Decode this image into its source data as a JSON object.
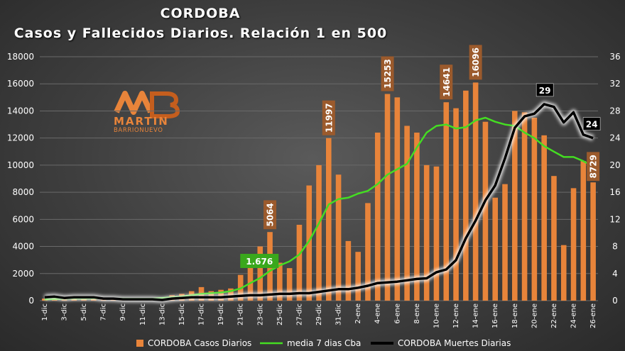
{
  "header": {
    "title": "CORDOBA",
    "subtitle": "Casos y Fallecidos Diarios. Relación 1 en 500"
  },
  "logo": {
    "name": "MARTIN",
    "sub": "BARRIONUEVO"
  },
  "colors": {
    "bars": "#e8843a",
    "bar_label_bg": "#9b5a2c",
    "media": "#44dd22",
    "deaths": "#000000",
    "deaths_glow": "#ffffff"
  },
  "chart_data": {
    "type": "bar",
    "title": "CORDOBA — Casos y Fallecidos Diarios. Relación 1 en 500",
    "categories": [
      "1-dic",
      "2-dic",
      "3-dic",
      "4-dic",
      "5-dic",
      "6-dic",
      "7-dic",
      "8-dic",
      "9-dic",
      "10-dic",
      "11-dic",
      "12-dic",
      "13-dic",
      "14-dic",
      "15-dic",
      "16-dic",
      "17-dic",
      "18-dic",
      "19-dic",
      "20-dic",
      "21-dic",
      "22-dic",
      "23-dic",
      "24-dic",
      "25-dic",
      "26-dic",
      "27-dic",
      "28-dic",
      "29-dic",
      "30-dic",
      "31-dic",
      "1-ene",
      "2-ene",
      "3-ene",
      "4-ene",
      "5-ene",
      "6-ene",
      "7-ene",
      "8-ene",
      "9-ene",
      "10-ene",
      "11-ene",
      "12-ene",
      "13-ene",
      "14-ene",
      "15-ene",
      "16-ene",
      "17-ene",
      "18-ene",
      "19-ene",
      "20-ene",
      "21-ene",
      "22-ene",
      "23-ene",
      "24-ene",
      "25-ene",
      "26-ene"
    ],
    "tick_labels": [
      "1-dic",
      "3-dic",
      "5-dic",
      "7-dic",
      "9-dic",
      "11-dic",
      "13-dic",
      "15-dic",
      "17-dic",
      "19-dic",
      "21-dic",
      "23-dic",
      "25-dic",
      "27-dic",
      "29-dic",
      "31-dic",
      "2-ene",
      "4-ene",
      "6-ene",
      "8-ene",
      "10-ene",
      "12-ene",
      "14-ene",
      "16-ene",
      "18-ene",
      "20-ene",
      "22-ene",
      "24-ene",
      "26-ene"
    ],
    "y_left": {
      "min": 0,
      "max": 18000,
      "ticks": [
        0,
        2000,
        4000,
        6000,
        8000,
        10000,
        12000,
        14000,
        16000,
        18000
      ]
    },
    "y_right": {
      "min": 0,
      "max": 36,
      "ticks": [
        0,
        4,
        8,
        12,
        16,
        20,
        24,
        28,
        32,
        36
      ]
    },
    "grid": true,
    "legend_position": "bottom",
    "series": [
      {
        "name": "CORDOBA Casos Diarios",
        "type": "bar",
        "axis": "left",
        "values": [
          150,
          200,
          150,
          250,
          150,
          200,
          100,
          150,
          100,
          150,
          100,
          100,
          200,
          400,
          500,
          700,
          1000,
          700,
          800,
          900,
          1900,
          2900,
          4000,
          5064,
          2800,
          2400,
          5600,
          8500,
          10000,
          11997,
          9300,
          4400,
          3600,
          7200,
          12400,
          15253,
          15000,
          12900,
          12400,
          10000,
          9900,
          14641,
          14200,
          15500,
          16096,
          13200,
          7600,
          8600,
          14000,
          13900,
          13500,
          12200,
          9200,
          4100,
          8300,
          10300,
          8729
        ],
        "labels": [
          {
            "index": 23,
            "text": "5064"
          },
          {
            "index": 29,
            "text": "11997"
          },
          {
            "index": 35,
            "text": "15253"
          },
          {
            "index": 41,
            "text": "14641"
          },
          {
            "index": 44,
            "text": "16096"
          },
          {
            "index": 56,
            "text": "8729"
          }
        ]
      },
      {
        "name": "media 7 dias Cba",
        "type": "line",
        "axis": "left",
        "values": [
          100,
          120,
          140,
          150,
          150,
          160,
          160,
          150,
          150,
          140,
          140,
          150,
          200,
          250,
          300,
          400,
          500,
          550,
          600,
          700,
          900,
          1300,
          1676,
          2200,
          2600,
          2900,
          3400,
          4400,
          5700,
          7100,
          7500,
          7600,
          7900,
          8100,
          8600,
          9300,
          9700,
          10100,
          11300,
          12400,
          12900,
          13000,
          12700,
          12800,
          13300,
          13500,
          13200,
          13000,
          12900,
          12400,
          12000,
          11400,
          11000,
          10600,
          10600,
          10300,
          9900
        ],
        "labels": [
          {
            "index": 22,
            "text": "1.676"
          }
        ]
      },
      {
        "name": "CORDOBA Muertes Diarias",
        "type": "line",
        "axis": "right",
        "values": [
          0.5,
          0.6,
          0.4,
          0.5,
          0.5,
          0.5,
          0.3,
          0.3,
          0.2,
          0.2,
          0.2,
          0.2,
          0.1,
          0.3,
          0.4,
          0.5,
          0.5,
          0.5,
          0.5,
          0.6,
          0.7,
          0.8,
          0.8,
          0.9,
          1.0,
          1.0,
          1.1,
          1.1,
          1.3,
          1.5,
          1.7,
          1.7,
          1.9,
          2.2,
          2.6,
          2.7,
          2.8,
          3.0,
          3.2,
          3.3,
          4.2,
          4.6,
          6.0,
          9.2,
          11.8,
          14.8,
          17.0,
          21.0,
          25.5,
          27.2,
          27.6,
          29.0,
          28.6,
          26.3,
          27.8,
          24.5,
          24.0
        ],
        "labels": [
          {
            "index": 51,
            "text": "29"
          },
          {
            "index": 56,
            "text": "24"
          }
        ]
      }
    ]
  }
}
